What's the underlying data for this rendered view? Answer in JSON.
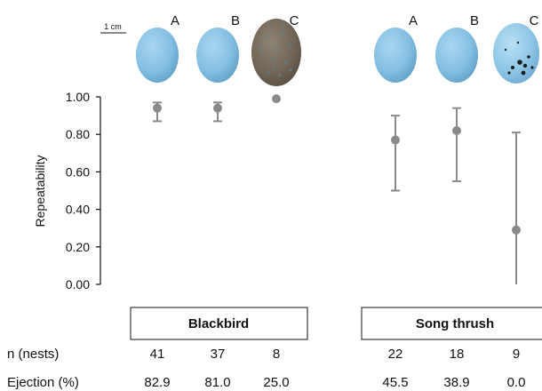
{
  "chart_data": {
    "type": "scatter",
    "ylabel": "Repeatability",
    "ylim": [
      0,
      1
    ],
    "yticks": [
      "0.00",
      "0.20",
      "0.40",
      "0.60",
      "0.80",
      "1.00"
    ],
    "scale_bar_label": "1 cm",
    "groups": [
      {
        "species": "Blackbird",
        "eggs": [
          {
            "label": "A",
            "color": "#86bfe0",
            "repeatability": 0.94,
            "ci": [
              0.87,
              0.97
            ],
            "n_nests": "41",
            "ejection_pct": "82.9"
          },
          {
            "label": "B",
            "color": "#86bfe0",
            "repeatability": 0.94,
            "ci": [
              0.87,
              0.97
            ],
            "n_nests": "37",
            "ejection_pct": "81.0"
          },
          {
            "label": "C",
            "color": "#7a6a5a",
            "repeatability": 0.99,
            "ci": null,
            "n_nests": "8",
            "ejection_pct": "25.0"
          }
        ]
      },
      {
        "species": "Song thrush",
        "eggs": [
          {
            "label": "A",
            "color": "#86bfe0",
            "repeatability": 0.77,
            "ci": [
              0.5,
              0.9
            ],
            "n_nests": "22",
            "ejection_pct": "45.5"
          },
          {
            "label": "B",
            "color": "#86bfe0",
            "repeatability": 0.82,
            "ci": [
              0.55,
              0.94
            ],
            "n_nests": "18",
            "ejection_pct": "38.9"
          },
          {
            "label": "C",
            "color": "#8ec6e6",
            "repeatability": 0.29,
            "ci": [
              0.0,
              0.81
            ],
            "n_nests": "9",
            "ejection_pct": "0.0"
          }
        ]
      }
    ],
    "row_labels": {
      "n": "n (nests)",
      "ejection": "Ejection (%)"
    },
    "marker_color": "#8a8a8a"
  }
}
